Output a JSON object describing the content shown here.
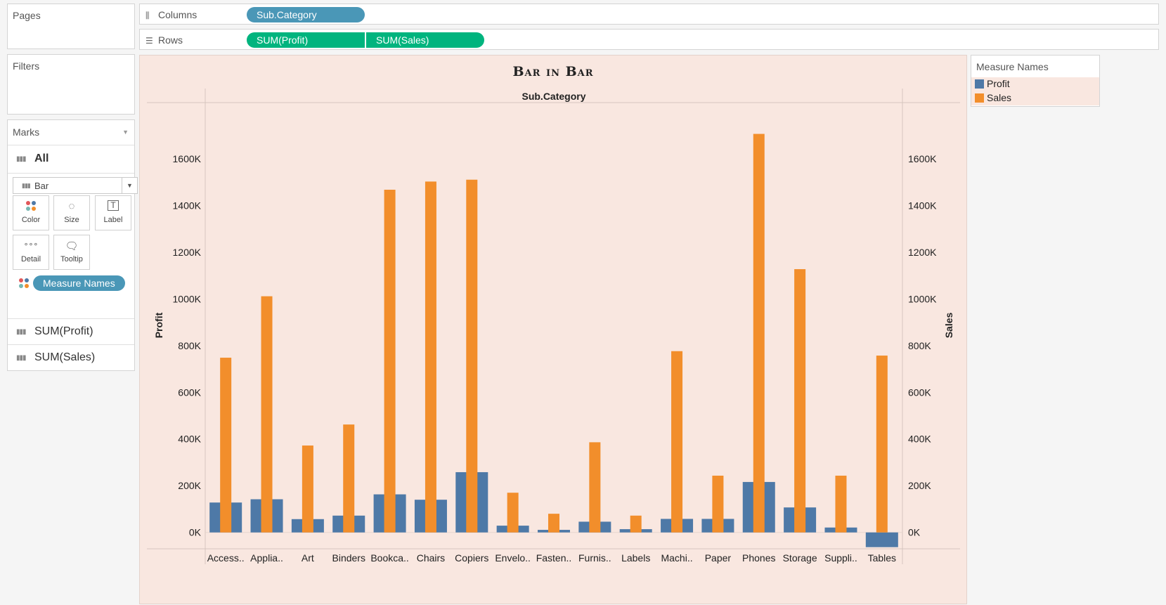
{
  "cards": {
    "pages": "Pages",
    "filters": "Filters"
  },
  "shelves": {
    "columns_label": "Columns",
    "rows_label": "Rows",
    "columns_pills": [
      "Sub.Category"
    ],
    "rows_pills": [
      "SUM(Profit)",
      "SUM(Sales)"
    ]
  },
  "marks": {
    "title": "Marks",
    "all_label": "All",
    "mark_type": "Bar",
    "buttons": [
      "Color",
      "Size",
      "Label",
      "Detail",
      "Tooltip"
    ],
    "color_pill": "Measure Names",
    "measures": [
      "SUM(Profit)",
      "SUM(Sales)"
    ]
  },
  "legend": {
    "title": "Measure Names",
    "items": [
      {
        "label": "Profit",
        "color": "#4e79a7"
      },
      {
        "label": "Sales",
        "color": "#f28e2b"
      }
    ]
  },
  "chart_data": {
    "type": "bar",
    "title": "Bar in Bar",
    "header": "Sub.Category",
    "left_axis_label": "Profit",
    "right_axis_label": "Sales",
    "ylim": [
      -70000,
      1840000
    ],
    "y_ticks": [
      0,
      200000,
      400000,
      600000,
      800000,
      1000000,
      1200000,
      1400000,
      1600000
    ],
    "y_tick_labels": [
      "0K",
      "200K",
      "400K",
      "600K",
      "800K",
      "1000K",
      "1200K",
      "1400K",
      "1600K"
    ],
    "categories": [
      "Access..",
      "Applia..",
      "Art",
      "Binders",
      "Bookca..",
      "Chairs",
      "Copiers",
      "Envelo..",
      "Fasten..",
      "Furnis..",
      "Labels",
      "Machi..",
      "Paper",
      "Phones",
      "Storage",
      "Suppli..",
      "Tables"
    ],
    "series": [
      {
        "name": "Profit",
        "color": "#4e79a7",
        "values": [
          128000,
          142000,
          57000,
          72000,
          163000,
          140000,
          258000,
          29000,
          11000,
          46000,
          14000,
          58000,
          58000,
          216000,
          107000,
          21000,
          -63000
        ]
      },
      {
        "name": "Sales",
        "color": "#f28e2b",
        "values": [
          748000,
          1011000,
          372000,
          462000,
          1467000,
          1502000,
          1510000,
          170000,
          80000,
          386000,
          72000,
          776000,
          243000,
          1706000,
          1127000,
          243000,
          757000
        ]
      }
    ],
    "grid": false,
    "legend_position": "right"
  }
}
